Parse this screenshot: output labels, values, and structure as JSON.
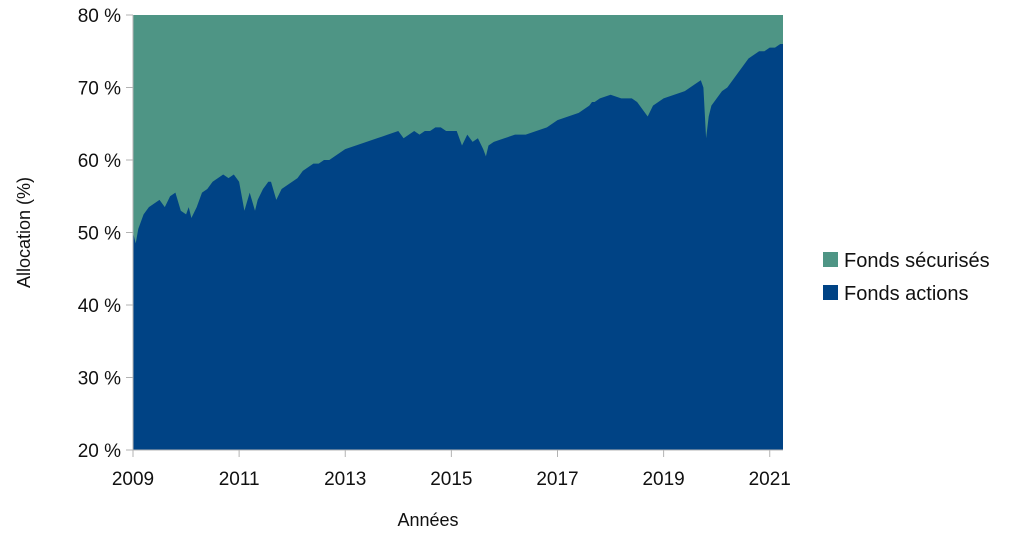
{
  "chart_data": {
    "type": "area",
    "stacked": true,
    "xlabel": "Années",
    "ylabel": "Allocation (%)",
    "xlim": [
      2009,
      2021.25
    ],
    "ylim": [
      20,
      80
    ],
    "y_ticks": [
      20,
      30,
      40,
      50,
      60,
      70,
      80
    ],
    "y_tick_labels": [
      "20 %",
      "30 %",
      "40 %",
      "50 %",
      "60 %",
      "70 %",
      "80 %"
    ],
    "x_ticks": [
      2009,
      2011,
      2013,
      2015,
      2017,
      2019,
      2021
    ],
    "x_tick_labels": [
      "2009",
      "2011",
      "2013",
      "2015",
      "2017",
      "2019",
      "2021"
    ],
    "grid": false,
    "legend_position": "right",
    "series": [
      {
        "name": "Fonds sécurisés",
        "color": "#4e9585",
        "fill": "remainder-to-top"
      },
      {
        "name": "Fonds actions",
        "color": "#004385",
        "x": [
          2009.0,
          2009.05,
          2009.1,
          2009.2,
          2009.3,
          2009.4,
          2009.5,
          2009.6,
          2009.7,
          2009.8,
          2009.9,
          2010.0,
          2010.05,
          2010.1,
          2010.2,
          2010.3,
          2010.4,
          2010.5,
          2010.6,
          2010.7,
          2010.8,
          2010.9,
          2011.0,
          2011.1,
          2011.2,
          2011.3,
          2011.35,
          2011.45,
          2011.5,
          2011.55,
          2011.6,
          2011.7,
          2011.8,
          2011.9,
          2012.0,
          2012.1,
          2012.2,
          2012.3,
          2012.4,
          2012.5,
          2012.6,
          2012.7,
          2012.8,
          2012.9,
          2013.0,
          2013.2,
          2013.4,
          2013.6,
          2013.8,
          2014.0,
          2014.1,
          2014.2,
          2014.3,
          2014.4,
          2014.5,
          2014.6,
          2014.7,
          2014.8,
          2014.9,
          2015.0,
          2015.1,
          2015.2,
          2015.3,
          2015.4,
          2015.5,
          2015.6,
          2015.65,
          2015.7,
          2015.8,
          2016.0,
          2016.2,
          2016.4,
          2016.6,
          2016.8,
          2017.0,
          2017.2,
          2017.4,
          2017.5,
          2017.6,
          2017.65,
          2017.7,
          2017.8,
          2018.0,
          2018.2,
          2018.4,
          2018.5,
          2018.6,
          2018.7,
          2018.8,
          2019.0,
          2019.2,
          2019.4,
          2019.5,
          2019.6,
          2019.7,
          2019.75,
          2019.8,
          2019.85,
          2019.9,
          2020.0,
          2020.1,
          2020.2,
          2020.3,
          2020.4,
          2020.5,
          2020.6,
          2020.7,
          2020.8,
          2020.9,
          2021.0,
          2021.1,
          2021.2,
          2021.25
        ],
        "y": [
          50.0,
          48.5,
          50.5,
          52.5,
          53.5,
          54.0,
          54.5,
          53.5,
          55.0,
          55.5,
          53.0,
          52.5,
          53.5,
          52.0,
          53.5,
          55.5,
          56.0,
          57.0,
          57.5,
          58.0,
          57.5,
          58.0,
          57.0,
          53.0,
          55.5,
          53.0,
          54.5,
          56.0,
          56.5,
          57.0,
          57.0,
          54.5,
          56.0,
          56.5,
          57.0,
          57.5,
          58.5,
          59.0,
          59.5,
          59.5,
          60.0,
          60.0,
          60.5,
          61.0,
          61.5,
          62.0,
          62.5,
          63.0,
          63.5,
          64.0,
          63.0,
          63.5,
          64.0,
          63.5,
          64.0,
          64.0,
          64.5,
          64.5,
          64.0,
          64.0,
          64.0,
          62.0,
          63.5,
          62.5,
          63.0,
          61.5,
          60.5,
          62.0,
          62.5,
          63.0,
          63.5,
          63.5,
          64.0,
          64.5,
          65.5,
          66.0,
          66.5,
          67.0,
          67.5,
          68.0,
          68.0,
          68.5,
          69.0,
          68.5,
          68.5,
          68.0,
          67.0,
          66.0,
          67.5,
          68.5,
          69.0,
          69.5,
          70.0,
          70.5,
          71.0,
          70.0,
          63.0,
          66.0,
          67.5,
          68.5,
          69.5,
          70.0,
          71.0,
          72.0,
          73.0,
          74.0,
          74.5,
          75.0,
          75.0,
          75.5,
          75.5,
          76.0,
          76.0
        ]
      }
    ]
  }
}
